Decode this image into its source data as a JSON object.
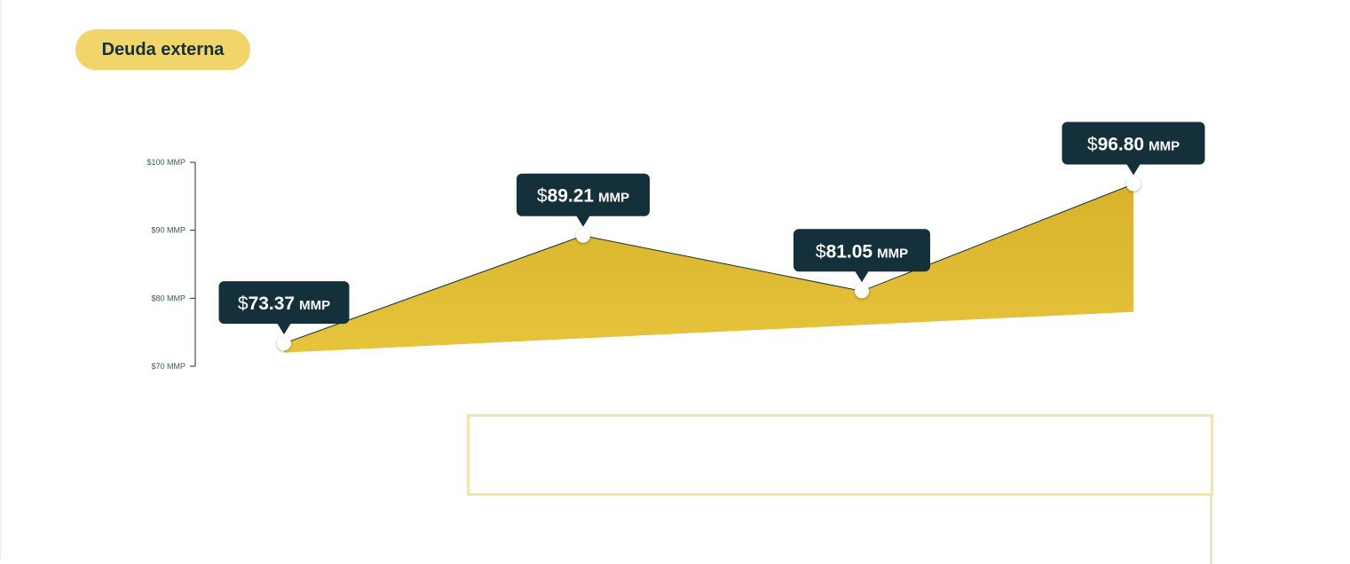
{
  "header": {
    "pill_label": "Deuda externa"
  },
  "colors": {
    "pill_bg": "#f1d56a",
    "area_top": "#d8b22a",
    "area_bottom": "#e6c43c",
    "tooltip_bg": "#14303a",
    "tooltip_text": "#ffffff",
    "axis": "#14303a",
    "box_border": "#efe4b8"
  },
  "chart_data": {
    "type": "area",
    "x": [
      "1",
      "2",
      "3",
      "4"
    ],
    "values": [
      73.37,
      89.21,
      81.05,
      96.8
    ],
    "baseline": [
      72,
      78
    ],
    "ylim": [
      70,
      100
    ],
    "yticks": [
      {
        "value": 100,
        "label": "$100 MMP"
      },
      {
        "value": 90,
        "label": "$90 MMP"
      },
      {
        "value": 80,
        "label": "$80 MMP"
      },
      {
        "value": 70,
        "label": "$70 MMP"
      }
    ],
    "data_labels": [
      {
        "currency": "$",
        "value": "73.37",
        "unit": "MMP"
      },
      {
        "currency": "$",
        "value": "89.21",
        "unit": "MMP"
      },
      {
        "currency": "$",
        "value": "81.05",
        "unit": "MMP"
      },
      {
        "currency": "$",
        "value": "96.80",
        "unit": "MMP"
      }
    ],
    "grid": false,
    "legend": "none"
  }
}
